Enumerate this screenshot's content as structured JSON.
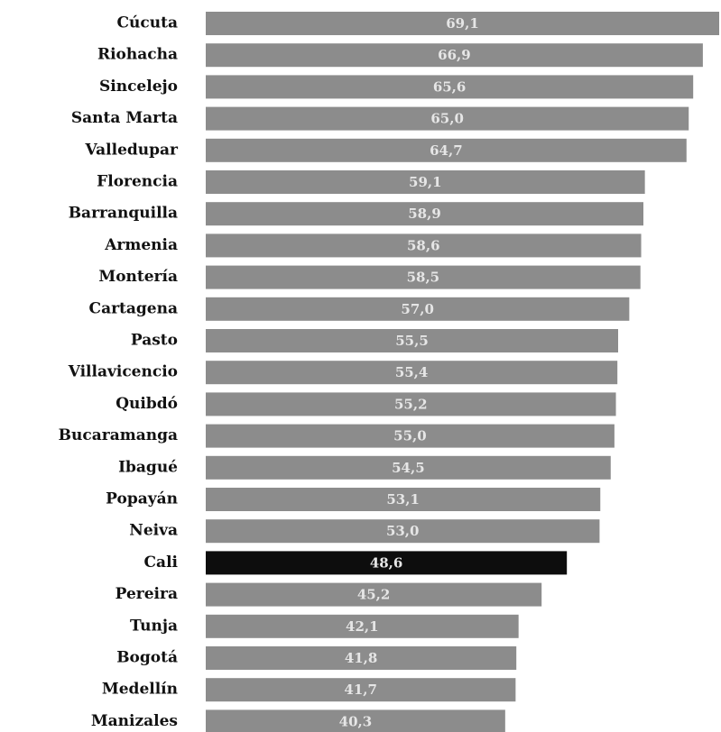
{
  "chart_data": {
    "type": "bar",
    "orientation": "horizontal",
    "categories": [
      "Cúcuta",
      "Riohacha",
      "Sincelejo",
      "Santa Marta",
      "Valledupar",
      "Florencia",
      "Barranquilla",
      "Armenia",
      "Montería",
      "Cartagena",
      "Pasto",
      "Villavicencio",
      "Quibdó",
      "Bucaramanga",
      "Ibagué",
      "Popayán",
      "Neiva",
      "Cali",
      "Pereira",
      "Tunja",
      "Bogotá",
      "Medellín",
      "Manizales"
    ],
    "values": [
      69.1,
      66.9,
      65.6,
      65.0,
      64.7,
      59.1,
      58.9,
      58.6,
      58.5,
      57.0,
      55.5,
      55.4,
      55.2,
      55.0,
      54.5,
      53.1,
      53.0,
      48.6,
      45.2,
      42.1,
      41.8,
      41.7,
      40.3
    ],
    "value_labels": [
      "69,1",
      "66,9",
      "65,6",
      "65,0",
      "64,7",
      "59,1",
      "58,9",
      "58,6",
      "58,5",
      "57,0",
      "55,5",
      "55,4",
      "55,2",
      "55,0",
      "54,5",
      "53,1",
      "53,0",
      "48,6",
      "45,2",
      "42,1",
      "41,8",
      "41,7",
      "40,3"
    ],
    "colors": [
      "#8c8c8c",
      "#8c8c8c",
      "#8c8c8c",
      "#8c8c8c",
      "#8c8c8c",
      "#8c8c8c",
      "#8c8c8c",
      "#8c8c8c",
      "#8c8c8c",
      "#8c8c8c",
      "#8c8c8c",
      "#8c8c8c",
      "#8c8c8c",
      "#8c8c8c",
      "#8c8c8c",
      "#8c8c8c",
      "#8c8c8c",
      "#0d0d0d",
      "#8c8c8c",
      "#8c8c8c",
      "#8c8c8c",
      "#8c8c8c",
      "#8c8c8c"
    ]
  }
}
